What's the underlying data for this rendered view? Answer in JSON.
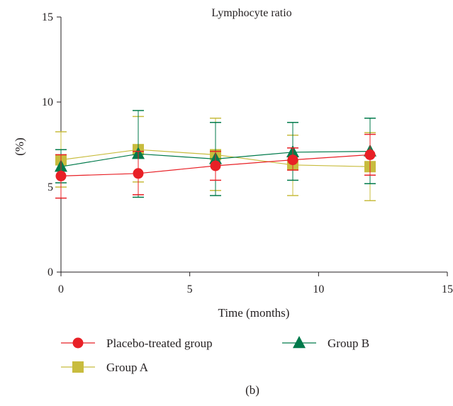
{
  "chart_data": {
    "type": "line",
    "title": "Lymphocyte ratio",
    "xlabel": "Time (months)",
    "ylabel": "(%)",
    "xlim": [
      0,
      15
    ],
    "ylim": [
      0,
      15
    ],
    "x_ticks": [
      "0",
      "5",
      "10",
      "15"
    ],
    "y_ticks": [
      "0",
      "5",
      "10",
      "15"
    ],
    "grid": false,
    "legend_position": "bottom",
    "panel_label": "(b)",
    "series": [
      {
        "name": "Placebo-treated group",
        "marker": "circle",
        "color": "#e82026",
        "x": [
          0,
          3,
          6,
          9,
          12
        ],
        "y": [
          5.65,
          5.8,
          6.25,
          6.6,
          6.9
        ],
        "err_low": [
          4.35,
          4.55,
          5.4,
          6.0,
          5.7
        ],
        "err_high": [
          6.9,
          7.1,
          7.1,
          7.3,
          8.1
        ]
      },
      {
        "name": "Group B",
        "marker": "triangle",
        "color": "#007a4b",
        "x": [
          0,
          3,
          6,
          9,
          12
        ],
        "y": [
          6.2,
          6.95,
          6.65,
          7.05,
          7.1
        ],
        "err_low": [
          5.25,
          4.4,
          4.5,
          5.4,
          5.2
        ],
        "err_high": [
          7.2,
          9.5,
          8.8,
          8.8,
          9.05
        ]
      },
      {
        "name": "Group A",
        "marker": "square",
        "color": "#c8bc3e",
        "x": [
          0,
          3,
          6,
          9,
          12
        ],
        "y": [
          6.6,
          7.2,
          6.9,
          6.3,
          6.2
        ],
        "err_low": [
          5.0,
          5.3,
          4.8,
          4.5,
          4.2
        ],
        "err_high": [
          8.25,
          9.15,
          9.05,
          8.05,
          8.2
        ]
      }
    ]
  }
}
